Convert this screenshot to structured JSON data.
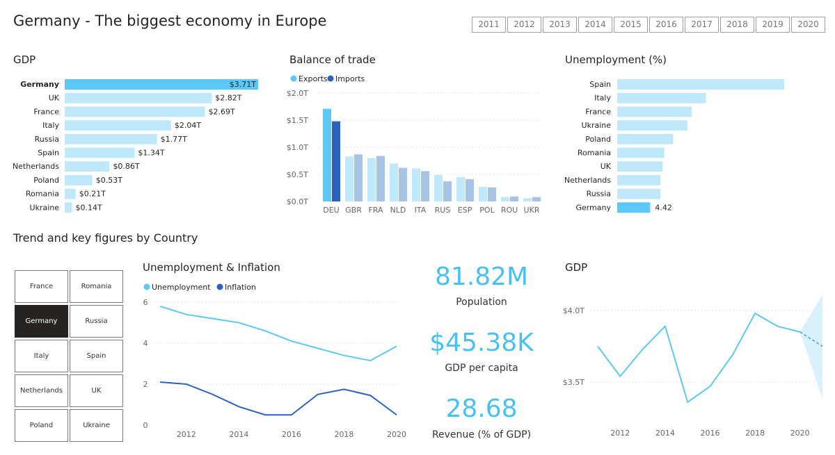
{
  "page": {
    "title": "Germany - The biggest economy in Europe",
    "years": [
      "2011",
      "2012",
      "2013",
      "2014",
      "2015",
      "2016",
      "2017",
      "2018",
      "2019",
      "2020"
    ],
    "trend_title": "Trend and key figures by Country",
    "slicer": {
      "countries": [
        "France",
        "Romania",
        "Germany",
        "Russia",
        "Italy",
        "Spain",
        "Netherlands",
        "UK",
        "Poland",
        "Ukraine"
      ],
      "selected": "Germany"
    },
    "kpis": [
      {
        "value": "81.82M",
        "label": "Population"
      },
      {
        "value": "$45.38K",
        "label": "GDP per capita"
      },
      {
        "value": "28.68",
        "label": "Revenue (% of GDP)"
      }
    ],
    "colors": {
      "accent": "#5bc8f8",
      "light": "#bfe8fb",
      "dark": "#2962c0",
      "imports_light": "#a9c3e8",
      "selected": "#252423"
    }
  },
  "chart_data": [
    {
      "type": "bar",
      "orientation": "horizontal",
      "title": "GDP",
      "categories": [
        "Germany",
        "UK",
        "France",
        "Italy",
        "Russia",
        "Spain",
        "Netherlands",
        "Poland",
        "Romania",
        "Ukraine"
      ],
      "values": [
        3.71,
        2.82,
        2.69,
        2.04,
        1.77,
        1.34,
        0.86,
        0.53,
        0.21,
        0.14
      ],
      "labels": [
        "$3.71T",
        "$2.82T",
        "$2.69T",
        "$2.04T",
        "$1.77T",
        "$1.34T",
        "$0.86T",
        "$0.53T",
        "$0.21T",
        "$0.14T"
      ],
      "highlight": "Germany"
    },
    {
      "type": "bar",
      "title": "Balance of trade",
      "categories": [
        "DEU",
        "GBR",
        "FRA",
        "NLD",
        "ITA",
        "RUS",
        "ESP",
        "POL",
        "ROU",
        "UKR"
      ],
      "series": [
        {
          "name": "Exports",
          "values": [
            1.71,
            0.83,
            0.8,
            0.7,
            0.61,
            0.49,
            0.45,
            0.27,
            0.08,
            0.06
          ]
        },
        {
          "name": "Imports",
          "values": [
            1.48,
            0.87,
            0.84,
            0.62,
            0.56,
            0.37,
            0.41,
            0.26,
            0.09,
            0.08
          ]
        }
      ],
      "ylim": [
        0,
        2
      ],
      "yticks": [
        "$0.0T",
        "$0.5T",
        "$1.0T",
        "$1.5T",
        "$2.0T"
      ],
      "legend": "top-left",
      "highlight": "DEU"
    },
    {
      "type": "bar",
      "orientation": "horizontal",
      "title": "Unemployment (%)",
      "categories": [
        "Spain",
        "Italy",
        "France",
        "Ukraine",
        "Poland",
        "Romania",
        "UK",
        "Netherlands",
        "Russia",
        "Germany"
      ],
      "values": [
        22.4,
        11.9,
        10.0,
        9.4,
        7.5,
        6.3,
        6.1,
        5.8,
        5.8,
        4.42
      ],
      "highlight": "Germany",
      "highlight_label": "4.42"
    },
    {
      "type": "line",
      "title": "Unemployment & Inflation",
      "x": [
        2011,
        2012,
        2013,
        2014,
        2015,
        2016,
        2017,
        2018,
        2019,
        2020
      ],
      "series": [
        {
          "name": "Unemployment",
          "values": [
            5.8,
            5.4,
            5.2,
            5.0,
            4.6,
            4.1,
            3.75,
            3.4,
            3.15,
            3.85
          ]
        },
        {
          "name": "Inflation",
          "values": [
            2.1,
            2.0,
            1.5,
            0.9,
            0.5,
            0.5,
            1.5,
            1.75,
            1.45,
            0.5
          ]
        }
      ],
      "ylim": [
        0,
        6
      ],
      "yticks": [
        "0",
        "2",
        "4",
        "6"
      ],
      "xticks": [
        "2012",
        "2014",
        "2016",
        "2018",
        "2020"
      ],
      "legend": "top-left"
    },
    {
      "type": "line",
      "title": "GDP",
      "x": [
        2011,
        2012,
        2013,
        2014,
        2015,
        2016,
        2017,
        2018,
        2019,
        2020
      ],
      "values": [
        3.75,
        3.54,
        3.73,
        3.89,
        3.36,
        3.47,
        3.69,
        3.98,
        3.89,
        3.85
      ],
      "forecast": {
        "x": [
          2020,
          2021
        ],
        "values": [
          3.85,
          3.75
        ],
        "upper": [
          3.85,
          4.11
        ],
        "lower": [
          3.85,
          3.38
        ]
      },
      "yticks": [
        "$3.5T",
        "$4.0T"
      ],
      "xticks": [
        "2012",
        "2014",
        "2016",
        "2018",
        "2020"
      ]
    }
  ]
}
